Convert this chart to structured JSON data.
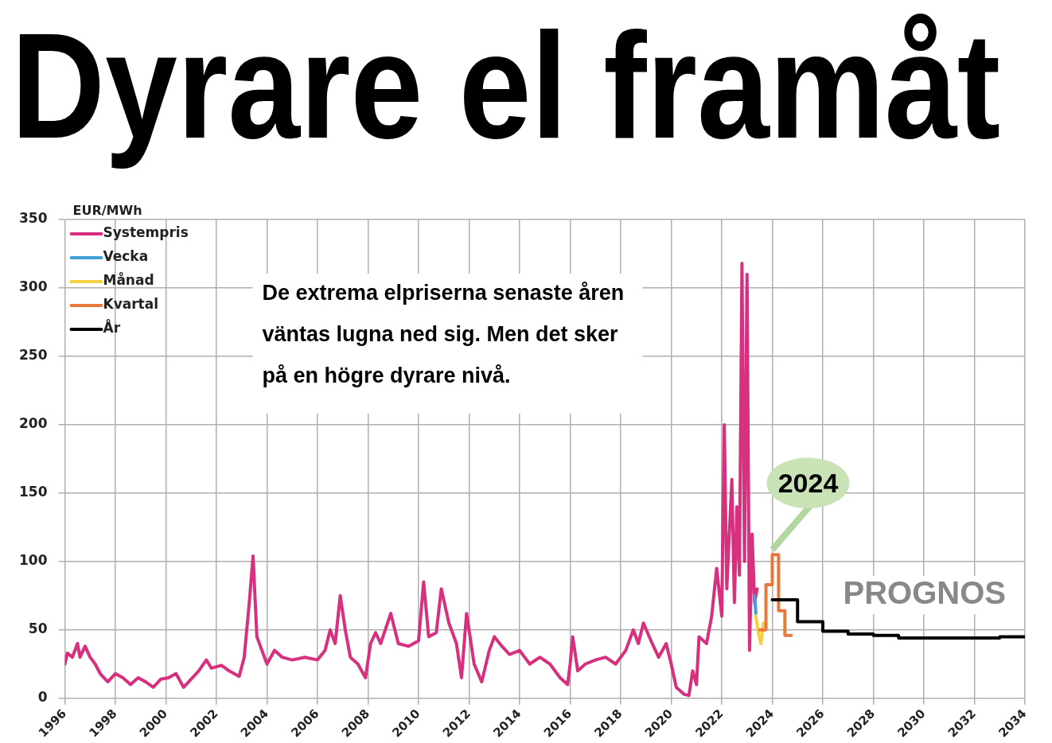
{
  "chart_data": {
    "type": "line",
    "title": "Dyrare el framåt",
    "ylabel": "EUR/MWh",
    "xlim": [
      1996,
      2034
    ],
    "xticks": [
      1996,
      1998,
      2000,
      2002,
      2004,
      2006,
      2008,
      2010,
      2012,
      2014,
      2016,
      2018,
      2020,
      2022,
      2024,
      2026,
      2028,
      2030,
      2032,
      2034
    ],
    "ylim": [
      0,
      350
    ],
    "yticks": [
      0,
      50,
      100,
      150,
      200,
      250,
      300,
      350
    ],
    "grid": true,
    "legend": "top left",
    "marker": "none",
    "line_style": "solid",
    "annotations": [
      "De extrema elpriserna senaste åren väntas lugna ned sig. Men det sker på en högre dyrare nivå.",
      "PROGNOS",
      {
        "text": "2024",
        "x": 2024,
        "y": 105
      }
    ],
    "series": [
      {
        "name": "Systempris",
        "color": "#d6307f",
        "x": [
          1996.0,
          1996.1,
          1996.3,
          1996.5,
          1996.6,
          1996.8,
          1997.0,
          1997.2,
          1997.4,
          1997.7,
          1998.0,
          1998.3,
          1998.6,
          1998.9,
          1999.2,
          1999.5,
          1999.8,
          2000.1,
          2000.4,
          2000.7,
          2001.0,
          2001.3,
          2001.6,
          2001.8,
          2002.2,
          2002.5,
          2002.9,
          2003.1,
          2003.3,
          2003.45,
          2003.6,
          2003.8,
          2004.0,
          2004.3,
          2004.6,
          2005.0,
          2005.5,
          2006.0,
          2006.3,
          2006.5,
          2006.7,
          2006.9,
          2007.1,
          2007.3,
          2007.6,
          2007.9,
          2008.1,
          2008.3,
          2008.5,
          2008.9,
          2009.2,
          2009.6,
          2010.0,
          2010.2,
          2010.4,
          2010.7,
          2010.9,
          2011.2,
          2011.5,
          2011.7,
          2011.9,
          2012.2,
          2012.5,
          2012.8,
          2013.0,
          2013.3,
          2013.6,
          2014.0,
          2014.4,
          2014.8,
          2015.2,
          2015.6,
          2015.9,
          2016.0,
          2016.1,
          2016.3,
          2016.6,
          2017.0,
          2017.4,
          2017.8,
          2018.2,
          2018.5,
          2018.7,
          2018.9,
          2019.2,
          2019.5,
          2019.8,
          2020.0,
          2020.2,
          2020.5,
          2020.7,
          2020.85,
          2021.0,
          2021.1,
          2021.4,
          2021.6,
          2021.8,
          2022.0,
          2022.1,
          2022.2,
          2022.4,
          2022.5,
          2022.6,
          2022.7,
          2022.8,
          2022.9,
          2023.0,
          2023.1,
          2023.2,
          2023.3,
          2023.4
        ],
        "values": [
          25,
          33,
          30,
          40,
          30,
          38,
          30,
          25,
          18,
          12,
          18,
          15,
          10,
          15,
          12,
          8,
          14,
          15,
          18,
          8,
          14,
          20,
          28,
          22,
          24,
          20,
          16,
          30,
          70,
          104,
          45,
          35,
          25,
          35,
          30,
          28,
          30,
          28,
          35,
          50,
          40,
          75,
          50,
          30,
          25,
          15,
          40,
          48,
          40,
          62,
          40,
          38,
          42,
          85,
          45,
          48,
          80,
          55,
          40,
          15,
          62,
          25,
          12,
          35,
          45,
          38,
          32,
          35,
          25,
          30,
          25,
          15,
          10,
          25,
          45,
          20,
          25,
          28,
          30,
          25,
          35,
          50,
          40,
          55,
          42,
          30,
          40,
          25,
          8,
          3,
          2,
          20,
          10,
          45,
          40,
          60,
          95,
          60,
          200,
          80,
          160,
          70,
          140,
          90,
          318,
          100,
          310,
          35,
          120,
          70,
          80
        ]
      },
      {
        "name": "Vecka",
        "color": "#3fa0d8",
        "x": [
          2023.3,
          2023.35
        ],
        "values": [
          75,
          62
        ]
      },
      {
        "name": "Månad",
        "color": "#f5d040",
        "x": [
          2023.35,
          2023.45,
          2023.55,
          2023.65
        ],
        "values": [
          60,
          48,
          40,
          55
        ]
      },
      {
        "name": "Kvartal",
        "type": "step",
        "color": "#e8783a",
        "x": [
          2023.5,
          2023.75,
          2024.0,
          2024.25,
          2024.5,
          2024.75
        ],
        "values": [
          50,
          83,
          105,
          64,
          46,
          46
        ]
      },
      {
        "name": "År",
        "type": "step",
        "color": "#000000",
        "x": [
          2024,
          2025,
          2026,
          2027,
          2028,
          2029,
          2030,
          2031,
          2032,
          2033,
          2034
        ],
        "values": [
          72,
          56,
          49,
          47,
          46,
          44,
          44,
          44,
          44,
          45,
          45
        ]
      }
    ]
  }
}
